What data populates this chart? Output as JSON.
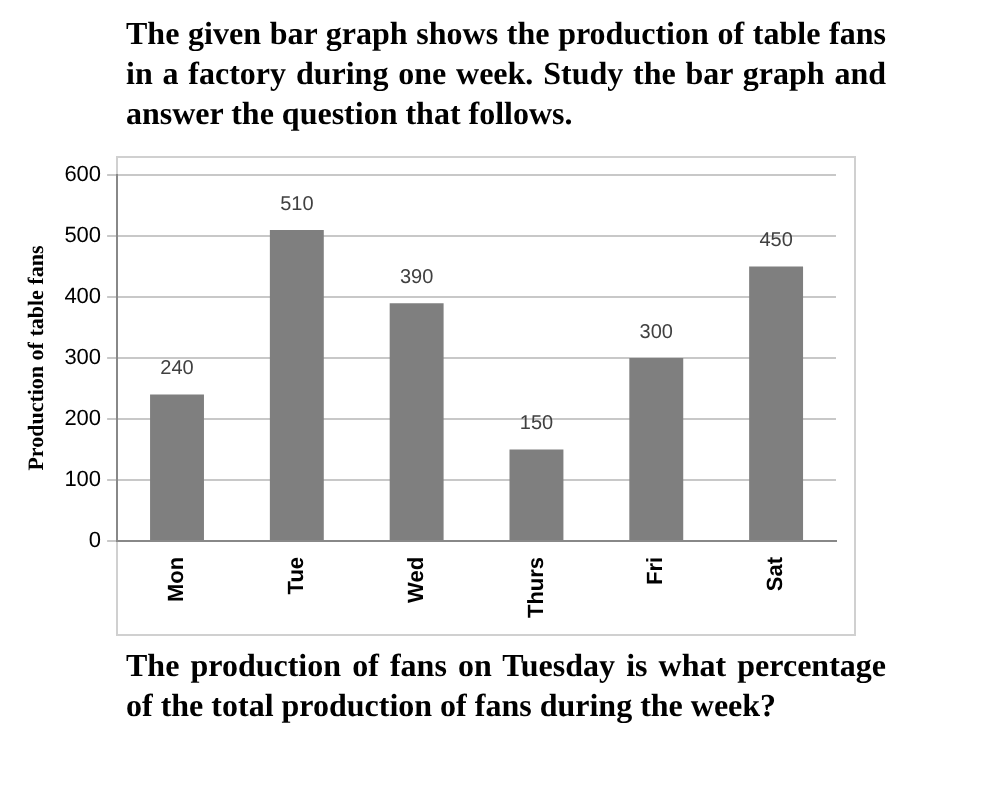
{
  "chart_data": {
    "type": "bar",
    "title": "The given bar graph shows the production of table fans in a factory during one week. Study the bar graph and answer the  question that follows.",
    "ylabel": "Production of table fans",
    "categories": [
      "Mon",
      "Tue",
      "Wed",
      "Thurs",
      "Fri",
      "Sat"
    ],
    "values": [
      240,
      510,
      390,
      150,
      300,
      450
    ],
    "color": "#7f7f7f",
    "ylim": [
      0,
      600
    ],
    "yticks": [
      0,
      100,
      200,
      300,
      400,
      500,
      600
    ],
    "grid": "y",
    "data_labels": true,
    "legend": false,
    "annotations": [
      "The production of fans on Tuesday is what percentage of the total production of fans during the week?"
    ]
  }
}
